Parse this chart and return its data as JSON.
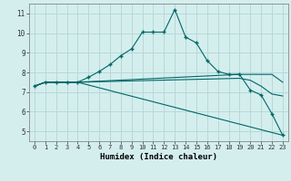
{
  "title": "",
  "xlabel": "Humidex (Indice chaleur)",
  "bg_color": "#d4eeee",
  "grid_color": "#b8d8d8",
  "line_color": "#006666",
  "xlim": [
    -0.5,
    23.5
  ],
  "ylim": [
    4.5,
    11.5
  ],
  "xticks": [
    0,
    1,
    2,
    3,
    4,
    5,
    6,
    7,
    8,
    9,
    10,
    11,
    12,
    13,
    14,
    15,
    16,
    17,
    18,
    19,
    20,
    21,
    22,
    23
  ],
  "yticks": [
    5,
    6,
    7,
    8,
    9,
    10,
    11
  ],
  "lines": [
    {
      "x": [
        0,
        1,
        2,
        3,
        4,
        5,
        6,
        7,
        8,
        9,
        10,
        11,
        12,
        13,
        14,
        15,
        16,
        17,
        18,
        19,
        20,
        21,
        22,
        23
      ],
      "y": [
        7.3,
        7.5,
        7.5,
        7.5,
        7.5,
        7.75,
        8.05,
        8.4,
        8.85,
        9.2,
        10.05,
        10.05,
        10.05,
        11.2,
        9.8,
        9.5,
        8.6,
        8.05,
        7.9,
        7.9,
        7.1,
        6.85,
        5.9,
        4.8
      ],
      "marker": "+"
    },
    {
      "x": [
        0,
        1,
        2,
        3,
        4,
        19,
        22,
        23
      ],
      "y": [
        7.3,
        7.5,
        7.5,
        7.5,
        7.5,
        7.9,
        7.9,
        7.5
      ],
      "marker": null
    },
    {
      "x": [
        0,
        1,
        2,
        3,
        4,
        19,
        20,
        21,
        22,
        23
      ],
      "y": [
        7.3,
        7.5,
        7.5,
        7.5,
        7.5,
        7.7,
        7.6,
        7.3,
        6.9,
        6.8
      ],
      "marker": null
    },
    {
      "x": [
        0,
        1,
        2,
        3,
        4,
        23
      ],
      "y": [
        7.3,
        7.5,
        7.5,
        7.5,
        7.5,
        4.8
      ],
      "marker": null
    }
  ]
}
